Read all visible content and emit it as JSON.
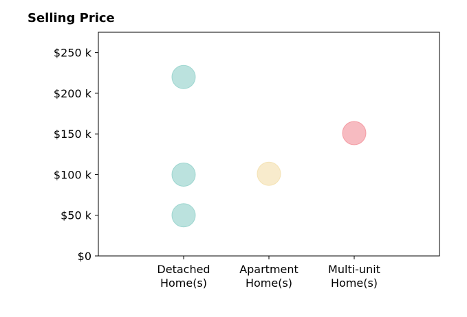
{
  "chart_data": {
    "type": "scatter",
    "title": "Selling Price",
    "categories": [
      "Detached\nHome(s)",
      "Apartment\nHome(s)",
      "Multi-unit\nHome(s)"
    ],
    "xlim": [
      -1,
      3
    ],
    "ylim": [
      0,
      275000
    ],
    "yticks": [
      0,
      50000,
      100000,
      150000,
      200000,
      250000
    ],
    "ytick_labels": [
      "$0",
      "$50 k",
      "$100 k",
      "$150 k",
      "$200 k",
      "$250 k"
    ],
    "grid": false,
    "points": [
      {
        "category_index": 0,
        "y": 220000,
        "color": "#8ecfc8"
      },
      {
        "category_index": 0,
        "y": 100000,
        "color": "#8ecfc8"
      },
      {
        "category_index": 0,
        "y": 50000,
        "color": "#8ecfc8"
      },
      {
        "category_index": 1,
        "y": 101000,
        "color": "#f3deaa"
      },
      {
        "category_index": 2,
        "y": 151000,
        "color": "#f28e97"
      }
    ]
  }
}
